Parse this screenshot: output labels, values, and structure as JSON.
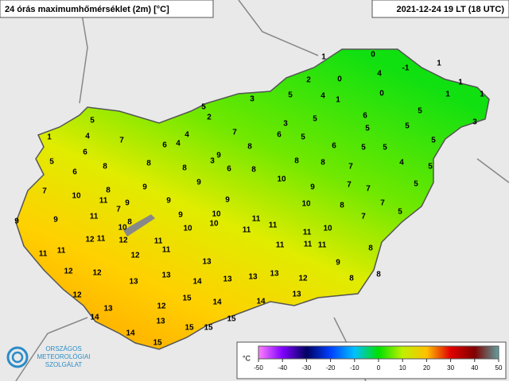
{
  "header": {
    "title": "24 órás maximumhőmérséklet (2m) [°C]",
    "time": "2021-12-24 19 LT (18 UTC)"
  },
  "stations": [
    1,
    0,
    -1,
    1,
    2,
    0,
    4,
    1,
    3,
    5,
    4,
    1,
    0,
    1,
    1,
    5,
    2,
    3,
    5,
    6,
    5,
    3,
    5,
    7,
    6,
    5,
    5,
    5,
    1,
    4,
    7,
    4,
    6,
    4,
    8,
    6,
    5,
    5,
    5,
    6,
    9,
    3,
    6,
    5,
    8,
    8,
    6,
    8,
    8,
    8,
    8,
    7,
    4,
    5,
    7,
    10,
    8,
    9,
    9,
    10,
    9,
    7,
    7,
    5,
    9,
    11,
    7,
    9,
    9,
    10,
    8,
    7,
    9,
    9,
    11,
    9,
    10,
    10,
    11,
    7,
    5,
    10,
    8,
    10,
    11,
    11,
    11,
    10,
    12,
    11,
    12,
    11,
    11,
    11,
    11,
    11,
    11,
    12,
    11,
    8,
    13,
    9,
    12,
    12,
    13,
    13,
    13,
    8,
    8,
    13,
    14,
    13,
    12,
    12,
    15,
    14,
    14,
    13,
    13,
    12,
    14,
    13,
    15,
    14,
    15,
    15,
    15
  ],
  "legend": {
    "unit": "°C",
    "ticks": [
      -50,
      -40,
      -30,
      -20,
      -10,
      0,
      10,
      20,
      30,
      40,
      50
    ],
    "colors": [
      "#ff80ff",
      "#8000ff",
      "#000060",
      "#0040ff",
      "#00c0ff",
      "#00e000",
      "#c0f000",
      "#ffc000",
      "#e00000",
      "#800000",
      "#60a0a0"
    ]
  },
  "logo": {
    "lines": [
      "ORSZÁGOS",
      "METEOROLÓGIAI",
      "SZOLGÁLAT"
    ]
  }
}
